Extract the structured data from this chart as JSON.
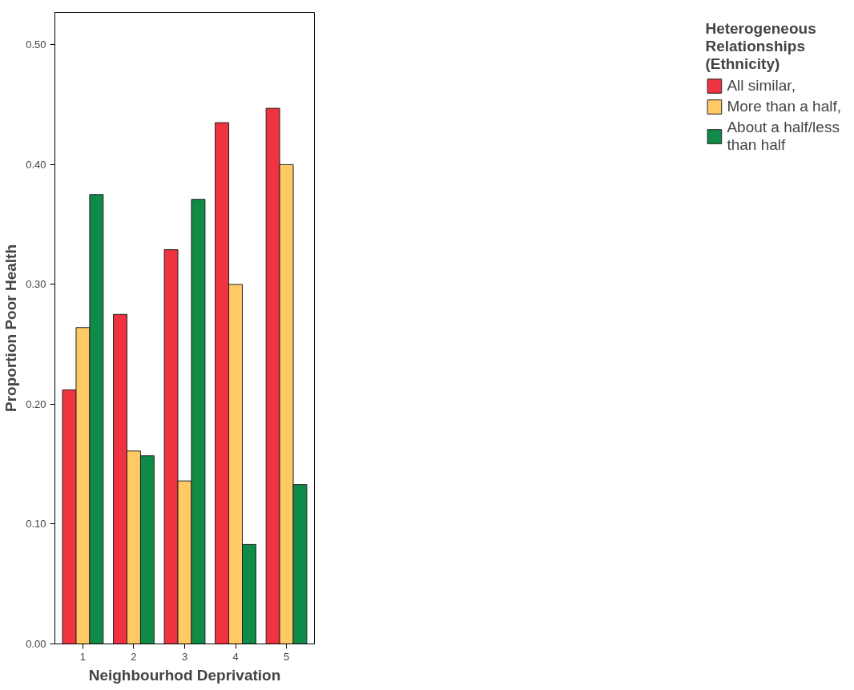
{
  "chart_data": {
    "type": "bar",
    "xlabel": "Neighbourhod Deprivation",
    "ylabel": "Proportion Poor Health",
    "legend_title": "Heterogeneous\nRelationships\n(Ethnicity)",
    "categories": [
      "1",
      "2",
      "3",
      "4",
      "5"
    ],
    "series": [
      {
        "name": "All similar,",
        "color": "#ef3340",
        "values": [
          0.212,
          0.275,
          0.329,
          0.435,
          0.447
        ]
      },
      {
        "name": "More than a half,",
        "color": "#ffc966",
        "values": [
          0.264,
          0.161,
          0.136,
          0.3,
          0.4
        ]
      },
      {
        "name": "About a half/less\nthan half",
        "color": "#0f8a47",
        "values": [
          0.375,
          0.157,
          0.371,
          0.083,
          0.133
        ]
      }
    ],
    "ylim": [
      0,
      0.527
    ],
    "yticks": [
      {
        "value": 0,
        "label": "0.00"
      },
      {
        "value": 0.1,
        "label": "0.10"
      },
      {
        "value": 0.2,
        "label": "0.20"
      },
      {
        "value": 0.3,
        "label": "0.30"
      },
      {
        "value": 0.4,
        "label": "0.40"
      },
      {
        "value": 0.5,
        "label": "0.50"
      }
    ],
    "grid": false,
    "legend": "right"
  }
}
